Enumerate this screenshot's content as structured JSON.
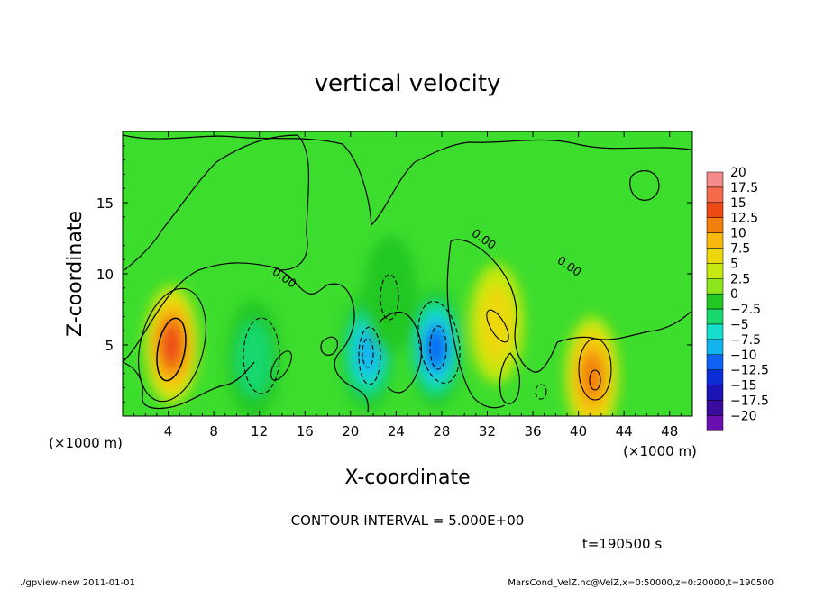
{
  "chart_data": {
    "type": "heatmap",
    "title": "vertical velocity",
    "xlabel": "X-coordinate",
    "ylabel": "Z-coordinate",
    "x_unit_label": "(×1000 m)",
    "y_unit_label": "(×1000 m)",
    "xlim": [
      0,
      50
    ],
    "ylim": [
      0,
      20
    ],
    "x_ticks": [
      4,
      8,
      12,
      16,
      20,
      24,
      28,
      32,
      36,
      40,
      44,
      48
    ],
    "y_ticks": [
      5,
      10,
      15
    ],
    "contour_interval_text": "CONTOUR INTERVAL = 5.000E+00",
    "time_text": "t=190500 s",
    "contour_labels": [
      {
        "text": "0.00",
        "x": 14,
        "z": 9.5
      },
      {
        "text": "0.00",
        "x": 31.5,
        "z": 12.2
      },
      {
        "text": "0.00",
        "x": 39,
        "z": 10.3
      }
    ],
    "colorbar": {
      "levels": [
        20,
        17.5,
        15,
        12.5,
        10,
        7.5,
        5,
        2.5,
        0,
        -2.5,
        -5,
        -7.5,
        -10,
        -12.5,
        -15,
        -17.5,
        -20
      ],
      "labels": [
        "20",
        "17.5",
        "15",
        "12.5",
        "10",
        "7.5",
        "5",
        "2.5",
        "0",
        "−2.5",
        "−5",
        "−7.5",
        "−10",
        "−12.5",
        "−15",
        "−17.5",
        "−20"
      ],
      "colors": [
        "#f58a8a",
        "#f46a4a",
        "#ee4a14",
        "#f27e0c",
        "#f8b80c",
        "#ecd80a",
        "#c6e810",
        "#8ee41a",
        "#22c822",
        "#19d86e",
        "#18dccc",
        "#12b4f0",
        "#0e62f4",
        "#0c2cd8",
        "#1c14b4",
        "#3a0c9c",
        "#6a10b0"
      ]
    },
    "features": [
      {
        "kind": "updraft",
        "x_center": 4.3,
        "z_center": 5.0,
        "peak": 12.5
      },
      {
        "kind": "updraft",
        "x_center": 41.2,
        "z_center": 2.8,
        "peak": 10
      },
      {
        "kind": "updraft",
        "x_center": 32.8,
        "z_center": 6.5,
        "peak": 5
      },
      {
        "kind": "downdraft",
        "x_center": 21.5,
        "z_center": 4.5,
        "peak": -10
      },
      {
        "kind": "downdraft",
        "x_center": 27.5,
        "z_center": 4.8,
        "peak": -12.5
      },
      {
        "kind": "downdraft",
        "x_center": 11.5,
        "z_center": 4.0,
        "peak": -5
      },
      {
        "kind": "downdraft",
        "x_center": 23.5,
        "z_center": 8.5,
        "peak": -2.5
      }
    ]
  },
  "footer": {
    "left": "./gpview-new   2011-01-01",
    "right": "MarsCond_VelZ.nc@VelZ,x=0:50000,z=0:20000,t=190500"
  }
}
